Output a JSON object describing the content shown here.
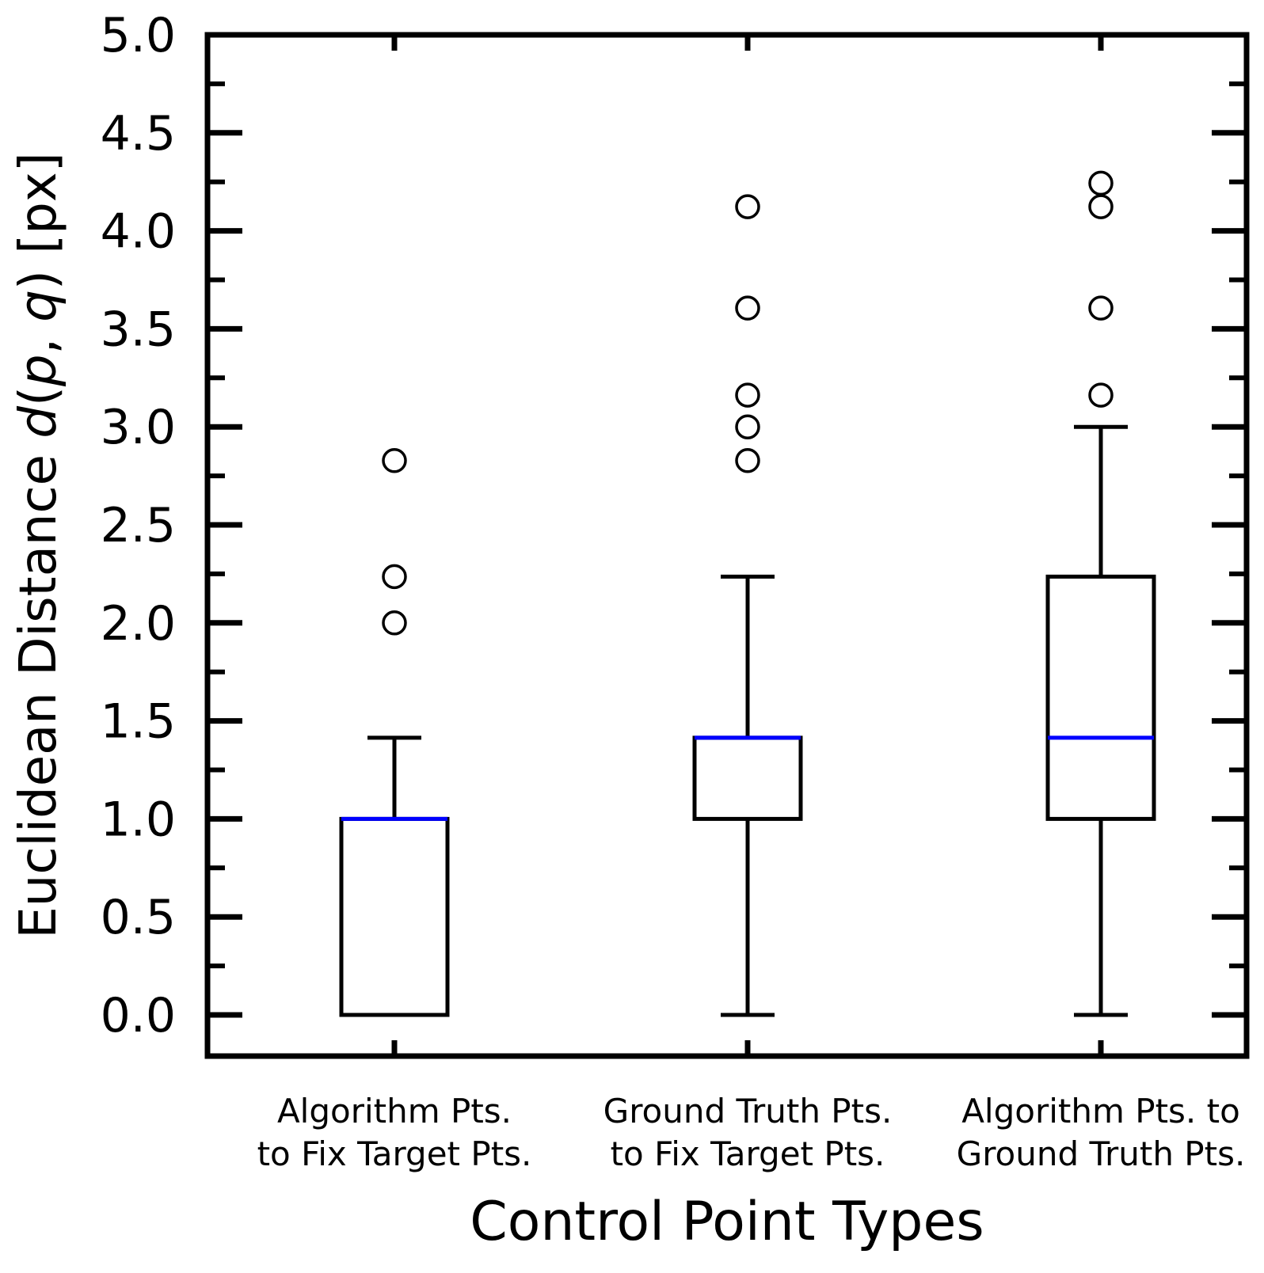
{
  "chart_data": {
    "type": "box",
    "xlabel": "Control Point Types",
    "ylabel": {
      "prefix": "Euclidean Distance ",
      "d": "d",
      "open": "(",
      "p": "p",
      "comma": ", ",
      "q": "q",
      "close": ")",
      "suffix": " [px]"
    },
    "ylim": [
      0.0,
      5.0
    ],
    "yticks": [
      "0.0",
      "0.5",
      "1.0",
      "1.5",
      "2.0",
      "2.5",
      "3.0",
      "3.5",
      "4.0",
      "4.5",
      "5.0"
    ],
    "median_color": "#0000ff",
    "box_color": "#000000",
    "categories": [
      {
        "line1": "Algorithm Pts.",
        "line2": "to Fix Target Pts."
      },
      {
        "line1": "Ground Truth Pts.",
        "line2": "to Fix Target Pts."
      },
      {
        "line1": "Algorithm Pts. to",
        "line2": "Ground Truth Pts."
      }
    ],
    "boxes": [
      {
        "whisker_low": 0.0,
        "q1": 0.0,
        "median": 1.0,
        "q3": 1.0,
        "whisker_high": 1.414,
        "outliers": [
          2.0,
          2.236,
          2.828
        ]
      },
      {
        "whisker_low": 0.0,
        "q1": 1.0,
        "median": 1.414,
        "q3": 1.414,
        "whisker_high": 2.236,
        "outliers": [
          2.828,
          3.0,
          3.162,
          3.606,
          4.123
        ]
      },
      {
        "whisker_low": 0.0,
        "q1": 1.0,
        "median": 1.414,
        "q3": 2.236,
        "whisker_high": 3.0,
        "outliers": [
          3.162,
          3.606,
          4.123,
          4.243
        ]
      }
    ]
  }
}
